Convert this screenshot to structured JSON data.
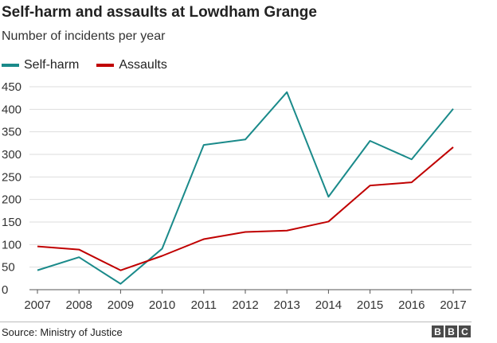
{
  "header": {
    "title": "Self-harm and assaults at Lowdham Grange",
    "subtitle": "Number of incidents per year"
  },
  "footer": {
    "source": "Source: Ministry of Justice",
    "logo_letters": [
      "B",
      "B",
      "C"
    ]
  },
  "chart_data": {
    "type": "line",
    "x": [
      2007,
      2008,
      2009,
      2010,
      2011,
      2012,
      2013,
      2014,
      2015,
      2016,
      2017
    ],
    "x_tick_labels": [
      "2007",
      "2008",
      "2009",
      "2010",
      "2011",
      "2012",
      "2013",
      "2014",
      "2015",
      "2016",
      "2017"
    ],
    "y_ticks": [
      0,
      50,
      100,
      150,
      200,
      250,
      300,
      350,
      400,
      450
    ],
    "y_tick_labels": [
      "0",
      "50",
      "100",
      "150",
      "200",
      "250",
      "300",
      "350",
      "400",
      "450"
    ],
    "ylim": [
      0,
      450
    ],
    "grid": true,
    "legend_position": "top-left",
    "series": [
      {
        "name": "Self-harm",
        "color": "#1a8a8a",
        "values": [
          43,
          72,
          13,
          91,
          321,
          333,
          438,
          206,
          330,
          289,
          401
        ]
      },
      {
        "name": "Assaults",
        "color": "#c00000",
        "values": [
          96,
          89,
          43,
          75,
          112,
          128,
          131,
          151,
          231,
          238,
          316
        ]
      }
    ]
  }
}
